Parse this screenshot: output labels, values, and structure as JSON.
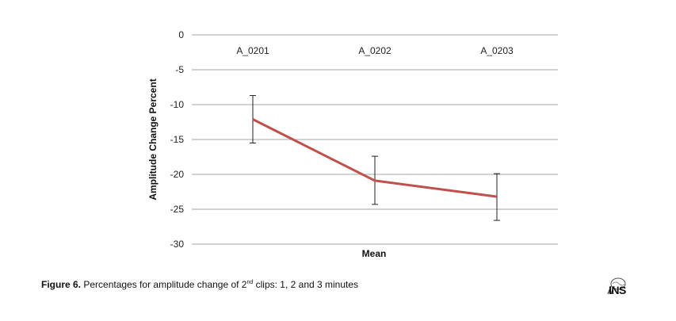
{
  "chart_data": {
    "type": "line",
    "categories": [
      "A_0201",
      "A_0202",
      "A_0203"
    ],
    "series": [
      {
        "values": [
          -12.1,
          -20.9,
          -23.2
        ],
        "error_low": [
          -15.5,
          -24.3,
          -26.6
        ],
        "error_high": [
          -8.7,
          -17.4,
          -19.9
        ]
      }
    ],
    "series_color": "#c0504d",
    "ylabel": "Amplitude Change Percent",
    "xlabel": "Mean",
    "ylim": [
      -30,
      0
    ],
    "y_ticks": [
      "0",
      "-5",
      "-10",
      "-15",
      "-20",
      "-25",
      "-30"
    ],
    "grid": true,
    "category_labels_position": "top"
  },
  "caption": {
    "figure_label": "Figure 6.",
    "text_before_sup": " Percentages for amplitude change of 2",
    "sup": "nd",
    "text_after_sup": " clips: 1, 2 and 3 minutes"
  },
  "logo": {
    "text": "INS"
  }
}
